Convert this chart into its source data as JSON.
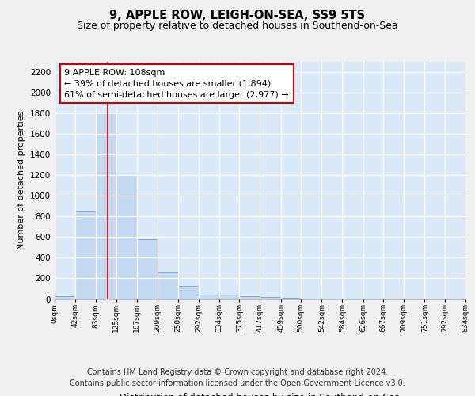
{
  "title": "9, APPLE ROW, LEIGH-ON-SEA, SS9 5TS",
  "subtitle": "Size of property relative to detached houses in Southend-on-Sea",
  "xlabel": "Distribution of detached houses by size in Southend-on-Sea",
  "ylabel": "Number of detached properties",
  "bar_color": "#c5d9f0",
  "bar_edge_color": "#7aadd4",
  "background_color": "#dce9f7",
  "grid_color": "#ffffff",
  "bin_edges": [
    0,
    42,
    83,
    125,
    167,
    209,
    250,
    292,
    334,
    375,
    417,
    459,
    500,
    542,
    584,
    626,
    667,
    709,
    751,
    792,
    834
  ],
  "bin_labels": [
    "0sqm",
    "42sqm",
    "83sqm",
    "125sqm",
    "167sqm",
    "209sqm",
    "250sqm",
    "292sqm",
    "334sqm",
    "375sqm",
    "417sqm",
    "459sqm",
    "500sqm",
    "542sqm",
    "584sqm",
    "626sqm",
    "667sqm",
    "709sqm",
    "751sqm",
    "792sqm",
    "834sqm"
  ],
  "bar_heights": [
    25,
    850,
    1800,
    1200,
    580,
    260,
    130,
    40,
    40,
    25,
    20,
    10,
    5,
    3,
    2,
    1,
    0,
    0,
    0,
    0
  ],
  "ylim": [
    0,
    2300
  ],
  "yticks": [
    0,
    200,
    400,
    600,
    800,
    1000,
    1200,
    1400,
    1600,
    1800,
    2000,
    2200
  ],
  "red_line_x": 108,
  "annotation_text": "9 APPLE ROW: 108sqm\n← 39% of detached houses are smaller (1,894)\n61% of semi-detached houses are larger (2,977) →",
  "annotation_box_color": "#ffffff",
  "annotation_border_color": "#cc0000",
  "footer_text": "Contains HM Land Registry data © Crown copyright and database right 2024.\nContains public sector information licensed under the Open Government Licence v3.0.",
  "title_fontsize": 10.5,
  "subtitle_fontsize": 9,
  "annotation_fontsize": 8,
  "footer_fontsize": 7,
  "fig_bg": "#f0f0f0"
}
